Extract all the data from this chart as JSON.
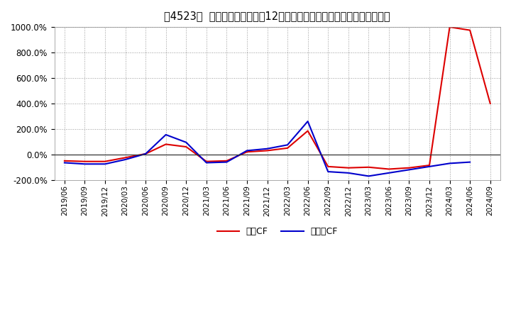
{
  "title": "[4523]  キャッシュフローの12か月移動合計の対前年同期増減率の推移",
  "title_bracket": "［4523］",
  "title_main": "キャッシュフローの12か月移動合計の対前年同期増減率の推移",
  "xlabel": "",
  "ylabel": "",
  "ylim": [
    -200,
    1000
  ],
  "yticks": [
    -200,
    0,
    200,
    400,
    600,
    800,
    1000
  ],
  "background_color": "#ffffff",
  "grid_color": "#aaaaaa",
  "line_color_eigyo": "#dd0000",
  "line_color_free": "#0000cc",
  "legend_eigyo": "営業CF",
  "legend_free": "フリーCF",
  "dates": [
    "2019/06",
    "2019/09",
    "2019/12",
    "2020/03",
    "2020/06",
    "2020/09",
    "2020/12",
    "2021/03",
    "2021/06",
    "2021/09",
    "2021/12",
    "2022/03",
    "2022/06",
    "2022/09",
    "2022/12",
    "2023/03",
    "2023/06",
    "2023/09",
    "2023/12",
    "2024/03",
    "2024/06",
    "2024/09"
  ],
  "eigyo_cf": [
    -50,
    -55,
    -55,
    -25,
    5,
    80,
    60,
    -55,
    -50,
    20,
    30,
    50,
    185,
    -95,
    -105,
    -100,
    -115,
    -105,
    -85,
    1000,
    975,
    400
  ],
  "free_cf": [
    -65,
    -75,
    -75,
    -40,
    5,
    155,
    95,
    -65,
    -60,
    30,
    45,
    75,
    260,
    -135,
    -145,
    -170,
    -145,
    -120,
    -95,
    -70,
    -60,
    null
  ]
}
